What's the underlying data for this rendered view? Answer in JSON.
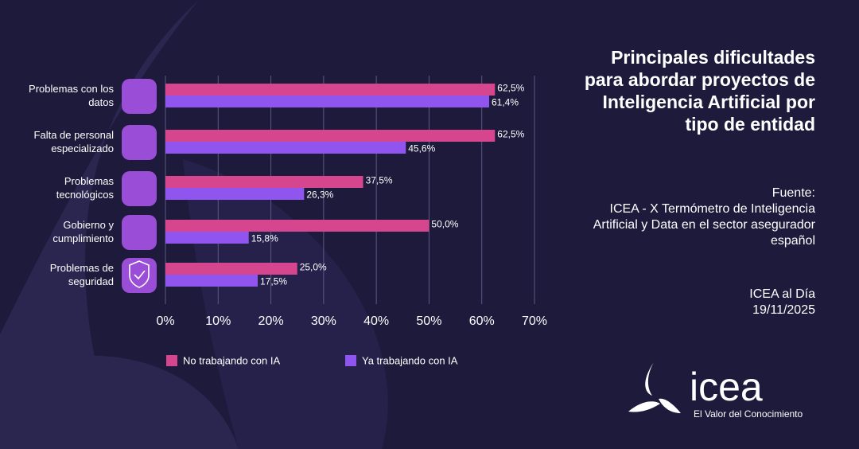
{
  "chart_data": {
    "type": "hbar",
    "title": "Principales dificultades para abordar proyectos de Inteligencia Artificial por tipo de entidad",
    "source_label": "Fuente:",
    "source": "ICEA - X Termómetro de Inteligencia Artificial y Data en el sector asegurador español",
    "publication": "ICEA al Día",
    "date": "19/11/2025",
    "logo": "icea",
    "tagline": "El Valor del Conocimiento",
    "categories": [
      "Problemas con los datos",
      "Falta de personal especializado",
      "Problemas tecnológicos",
      "Gobierno y cumplimiento",
      "Problemas de seguridad"
    ],
    "series": [
      {
        "name": "No trabajando con IA",
        "color": "#d6468e",
        "values": [
          62.5,
          62.5,
          37.5,
          50.0,
          25.0
        ],
        "value_labels": [
          "62,5%",
          "62,5%",
          "37,5%",
          "50,0%",
          "25,0%"
        ]
      },
      {
        "name": "Ya trabajando con IA",
        "color": "#8f55ee",
        "values": [
          61.4,
          45.6,
          26.3,
          15.8,
          17.5
        ],
        "value_labels": [
          "61,4%",
          "45,6%",
          "26,3%",
          "15,8%",
          "17,5%"
        ]
      }
    ],
    "xlim": [
      0,
      70
    ],
    "xticks": [
      {
        "value": 0,
        "label": "0%"
      },
      {
        "value": 10,
        "label": "10%"
      },
      {
        "value": 20,
        "label": "20%"
      },
      {
        "value": 30,
        "label": "30%"
      },
      {
        "value": 40,
        "label": "40%"
      },
      {
        "value": 50,
        "label": "50%"
      },
      {
        "value": 60,
        "label": "60%"
      },
      {
        "value": 70,
        "label": "70%"
      }
    ],
    "grid": true
  }
}
